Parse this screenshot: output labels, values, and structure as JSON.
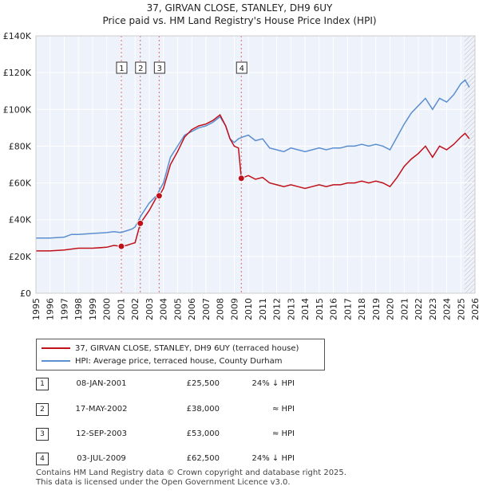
{
  "title_line1": "37, GIRVAN CLOSE, STANLEY, DH9 6UY",
  "title_line2": "Price paid vs. HM Land Registry's House Price Index (HPI)",
  "chart_data": {
    "type": "line",
    "title": "Price paid vs. HM Land Registry's House Price Index (HPI)",
    "xlabel": "",
    "ylabel": "",
    "xlim": [
      1995,
      2026
    ],
    "ylim": [
      0,
      140000
    ],
    "y_ticks": [
      0,
      20000,
      40000,
      60000,
      80000,
      100000,
      120000,
      140000
    ],
    "y_tick_labels": [
      "£0",
      "£20K",
      "£40K",
      "£60K",
      "£80K",
      "£100K",
      "£120K",
      "£140K"
    ],
    "x_ticks": [
      1995,
      1996,
      1997,
      1998,
      1999,
      2000,
      2001,
      2002,
      2003,
      2004,
      2005,
      2006,
      2007,
      2008,
      2009,
      2010,
      2011,
      2012,
      2013,
      2014,
      2015,
      2016,
      2017,
      2018,
      2019,
      2020,
      2021,
      2022,
      2023,
      2024,
      2025,
      2026
    ],
    "x_tick_labels": [
      "1995",
      "1996",
      "1997",
      "1998",
      "1999",
      "2000",
      "2001",
      "2002",
      "2003",
      "2004",
      "2005",
      "2006",
      "2007",
      "2008",
      "2009",
      "2010",
      "2011",
      "2012",
      "2013",
      "2014",
      "2015",
      "2016",
      "2017",
      "2018",
      "2019",
      "2020",
      "2021",
      "2022",
      "2023",
      "2024",
      "2025",
      "2026"
    ],
    "grid": true,
    "forecast_start": 2025.25,
    "series": [
      {
        "name": "HPI: Average price, terraced house, County Durham",
        "color": "#5b8fd0",
        "x": [
          1995.0,
          1996.0,
          1997.0,
          1997.5,
          1998.0,
          1999.0,
          2000.0,
          2000.5,
          2001.0,
          2001.4,
          2001.8,
          2002.0,
          2002.4,
          2003.0,
          2003.5,
          2004.0,
          2004.5,
          2005.0,
          2005.5,
          2006.0,
          2006.5,
          2007.0,
          2007.5,
          2008.0,
          2008.4,
          2008.7,
          2009.0,
          2009.3,
          2009.6,
          2010.0,
          2010.5,
          2011.0,
          2011.5,
          2012.0,
          2012.5,
          2013.0,
          2013.5,
          2014.0,
          2014.5,
          2015.0,
          2015.5,
          2016.0,
          2016.5,
          2017.0,
          2017.5,
          2018.0,
          2018.5,
          2019.0,
          2019.5,
          2020.0,
          2020.5,
          2021.0,
          2021.5,
          2022.0,
          2022.5,
          2023.0,
          2023.5,
          2024.0,
          2024.5,
          2025.0,
          2025.3,
          2025.6
        ],
        "y": [
          30000,
          30000,
          30500,
          32000,
          32000,
          32500,
          33000,
          33500,
          33000,
          34000,
          35000,
          36000,
          42000,
          49000,
          53000,
          60000,
          74000,
          80000,
          86000,
          88000,
          90000,
          91000,
          93000,
          96000,
          91000,
          84000,
          82000,
          84000,
          85000,
          86000,
          83000,
          84000,
          79000,
          78000,
          77000,
          79000,
          78000,
          77000,
          78000,
          79000,
          78000,
          79000,
          79000,
          80000,
          80000,
          81000,
          80000,
          81000,
          80000,
          78000,
          85000,
          92000,
          98000,
          102000,
          106000,
          100000,
          106000,
          104000,
          108000,
          114000,
          116000,
          112000
        ]
      },
      {
        "name": "37, GIRVAN CLOSE, STANLEY, DH9 6UY (terraced house)",
        "color": "#c0101a",
        "x": [
          1995.0,
          1996.0,
          1997.0,
          1997.5,
          1998.0,
          1999.0,
          2000.0,
          2000.5,
          2001.03,
          2001.4,
          2001.8,
          2002.0,
          2002.37,
          2003.0,
          2003.5,
          2003.7,
          2004.0,
          2004.5,
          2005.0,
          2005.5,
          2006.0,
          2006.5,
          2007.0,
          2007.5,
          2008.0,
          2008.4,
          2008.7,
          2009.0,
          2009.3,
          2009.5,
          2010.0,
          2010.5,
          2011.0,
          2011.5,
          2012.0,
          2012.5,
          2013.0,
          2013.5,
          2014.0,
          2014.5,
          2015.0,
          2015.5,
          2016.0,
          2016.5,
          2017.0,
          2017.5,
          2018.0,
          2018.5,
          2019.0,
          2019.5,
          2020.0,
          2020.5,
          2021.0,
          2021.5,
          2022.0,
          2022.5,
          2023.0,
          2023.5,
          2024.0,
          2024.5,
          2025.0,
          2025.3,
          2025.6
        ],
        "y": [
          23000,
          23000,
          23500,
          24000,
          24500,
          24500,
          25000,
          26000,
          25500,
          26000,
          27000,
          27500,
          38000,
          45000,
          52000,
          53000,
          57000,
          70000,
          77000,
          85000,
          89000,
          91000,
          92000,
          94000,
          97000,
          91000,
          84000,
          80000,
          79000,
          62500,
          64000,
          62000,
          63000,
          60000,
          59000,
          58000,
          59000,
          58000,
          57000,
          58000,
          59000,
          58000,
          59000,
          59000,
          60000,
          60000,
          61000,
          60000,
          61000,
          60000,
          58000,
          63000,
          69000,
          73000,
          76000,
          80000,
          74000,
          80000,
          78000,
          81000,
          85000,
          87000,
          84000
        ]
      }
    ],
    "sales": [
      {
        "num": "1",
        "date": "08-JAN-2001",
        "price": "£25,500",
        "hpi": "24% ↓ HPI",
        "x": 2001.03,
        "y": 25500
      },
      {
        "num": "2",
        "date": "17-MAY-2002",
        "price": "£38,000",
        "hpi": "≈ HPI",
        "x": 2002.37,
        "y": 38000
      },
      {
        "num": "3",
        "date": "12-SEP-2003",
        "price": "£53,000",
        "hpi": "≈ HPI",
        "x": 2003.7,
        "y": 53000
      },
      {
        "num": "4",
        "date": "03-JUL-2009",
        "price": "£62,500",
        "hpi": "24% ↓ HPI",
        "x": 2009.5,
        "y": 62500
      }
    ]
  },
  "legend": {
    "property_label": "37, GIRVAN CLOSE, STANLEY, DH9 6UY (terraced house)",
    "hpi_label": "HPI: Average price, terraced house, County Durham",
    "property_color": "#c0101a",
    "hpi_color": "#5b8fd0"
  },
  "footer": {
    "line1": "Contains HM Land Registry data © Crown copyright and database right 2025.",
    "line2": "This data is licensed under the Open Government Licence v3.0."
  }
}
